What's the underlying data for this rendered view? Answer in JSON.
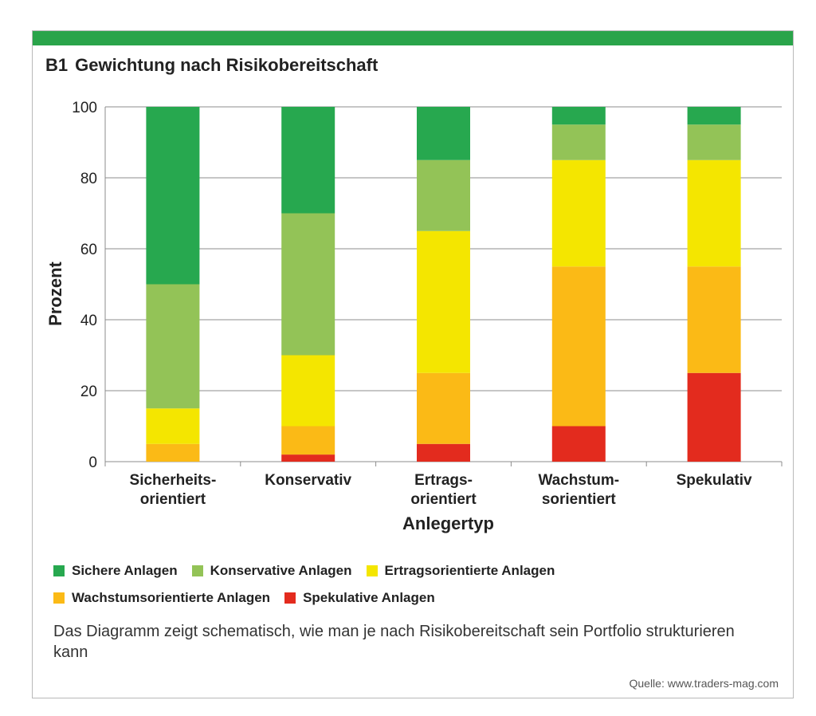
{
  "header": {
    "figure_number": "B1",
    "title": "Gewichtung nach Risikobereitschaft"
  },
  "chart_data": {
    "type": "bar",
    "stacked": true,
    "xlabel": "Anlegertyp",
    "ylabel": "Prozent",
    "ylim": [
      0,
      100
    ],
    "yticks": [
      0,
      20,
      40,
      60,
      80,
      100
    ],
    "grid": true,
    "categories": [
      [
        "Sicherheits-",
        "orientiert"
      ],
      [
        "Konservativ"
      ],
      [
        "Ertrags-",
        "orientiert"
      ],
      [
        "Wachstum-",
        "sorientiert"
      ],
      [
        "Spekulativ"
      ]
    ],
    "series": [
      {
        "name": "Spekulative Anlagen",
        "color": "#e32b1e",
        "values": [
          0,
          2,
          5,
          10,
          25
        ]
      },
      {
        "name": "Wachstumsorientierte Anlagen",
        "color": "#fbba16",
        "values": [
          5,
          8,
          20,
          45,
          30
        ]
      },
      {
        "name": "Ertragsorientierte Anlagen",
        "color": "#f4e600",
        "values": [
          10,
          20,
          40,
          30,
          30
        ]
      },
      {
        "name": "Konservative Anlagen",
        "color": "#93c357",
        "values": [
          35,
          40,
          20,
          10,
          10
        ]
      },
      {
        "name": "Sichere Anlagen",
        "color": "#27a84f",
        "values": [
          50,
          30,
          15,
          5,
          5
        ]
      }
    ],
    "legend_placement": "bottom"
  },
  "legend": {
    "rows": [
      [
        {
          "label": "Sichere Anlagen",
          "color": "#27a84f"
        },
        {
          "label": "Konservative Anlagen",
          "color": "#93c357"
        },
        {
          "label": "Ertragsorientierte Anlagen",
          "color": "#f4e600"
        }
      ],
      [
        {
          "label": "Wachstumsorientierte Anlagen",
          "color": "#fbba16"
        },
        {
          "label": "Spekulative Anlagen",
          "color": "#e32b1e"
        }
      ]
    ]
  },
  "caption": "Das Diagramm zeigt schematisch, wie man je nach Risikobereitschaft sein Portfolio strukturieren kann",
  "source": "Quelle: www.traders-mag.com"
}
